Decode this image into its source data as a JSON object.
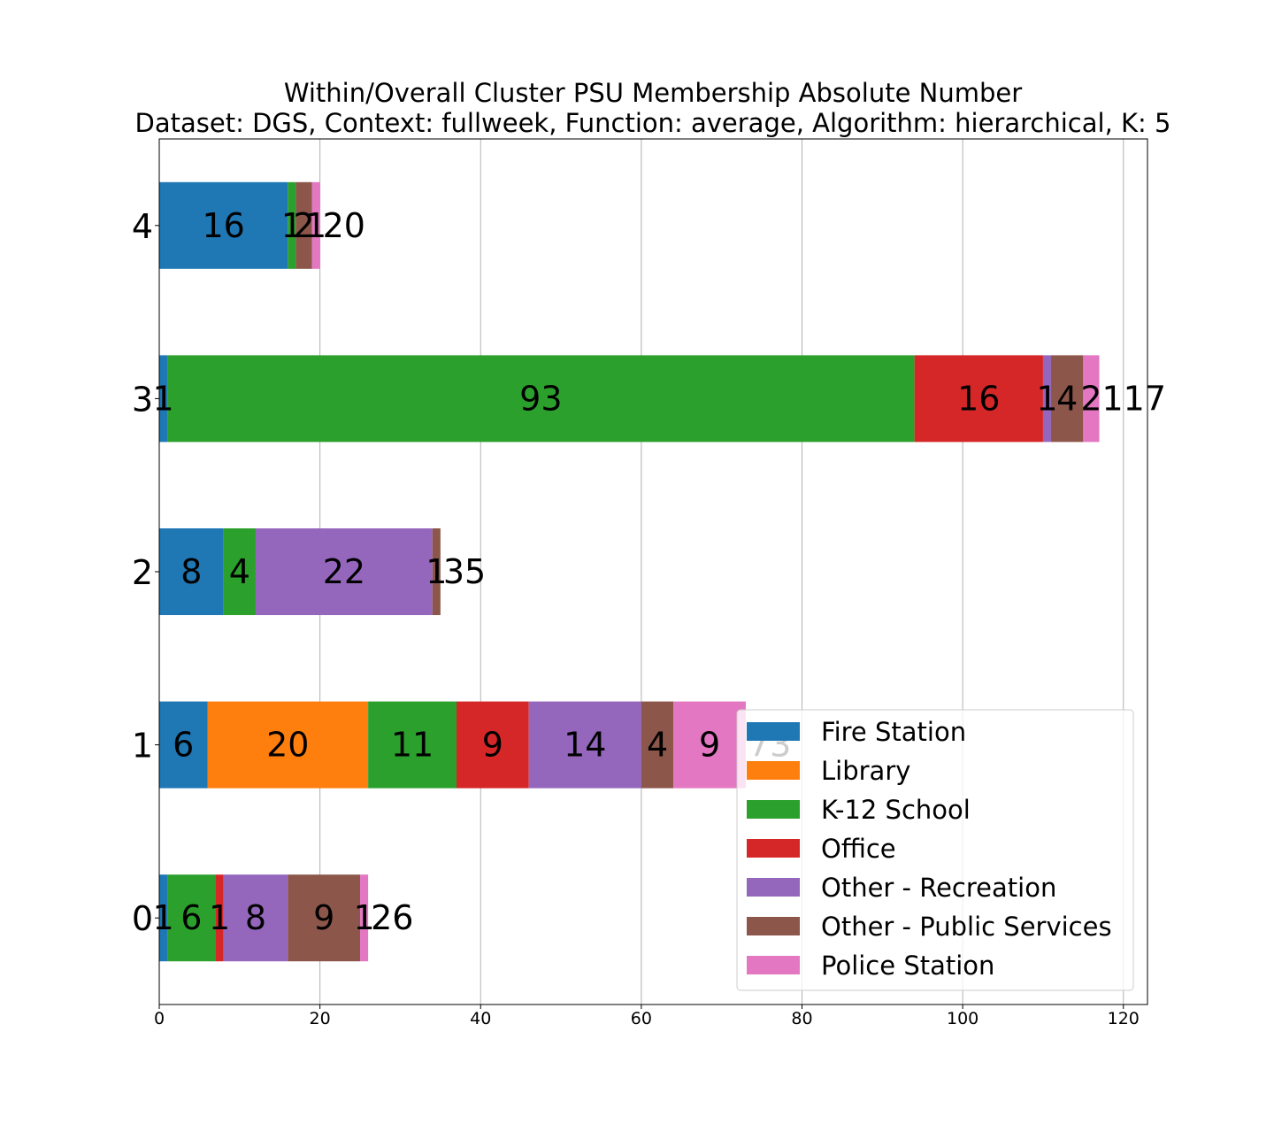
{
  "chart_data": {
    "type": "bar",
    "orientation": "horizontal",
    "stacked": true,
    "title": "Within/Overall Cluster PSU Membership Absolute Number",
    "subtitle": "Dataset: DGS, Context: fullweek, Function: average, Algorithm: hierarchical, K: 5",
    "xlabel": "",
    "ylabel": "",
    "xlim": [
      0,
      123
    ],
    "xticks": [
      "0",
      "20",
      "40",
      "60",
      "80",
      "100",
      "120"
    ],
    "categories": [
      "0",
      "1",
      "2",
      "3",
      "4"
    ],
    "grid": "vertical",
    "legend_position": "lower-right",
    "series": [
      {
        "name": "Fire Station",
        "color": "#1f77b4",
        "values": [
          1,
          6,
          8,
          1,
          16
        ]
      },
      {
        "name": "Library",
        "color": "#ff7f0e",
        "values": [
          0,
          20,
          0,
          0,
          0
        ]
      },
      {
        "name": "K-12 School",
        "color": "#2ca02c",
        "values": [
          6,
          11,
          4,
          93,
          1
        ]
      },
      {
        "name": "Office",
        "color": "#d62728",
        "values": [
          1,
          9,
          0,
          16,
          0
        ]
      },
      {
        "name": "Other - Recreation",
        "color": "#9467bd",
        "values": [
          8,
          14,
          22,
          1,
          0
        ]
      },
      {
        "name": "Other - Public Services",
        "color": "#8c564b",
        "values": [
          9,
          4,
          1,
          4,
          2
        ]
      },
      {
        "name": "Police Station",
        "color": "#e377c2",
        "values": [
          1,
          9,
          0,
          2,
          1
        ]
      }
    ],
    "totals": [
      "26",
      "73",
      "35",
      "117",
      "20"
    ]
  }
}
